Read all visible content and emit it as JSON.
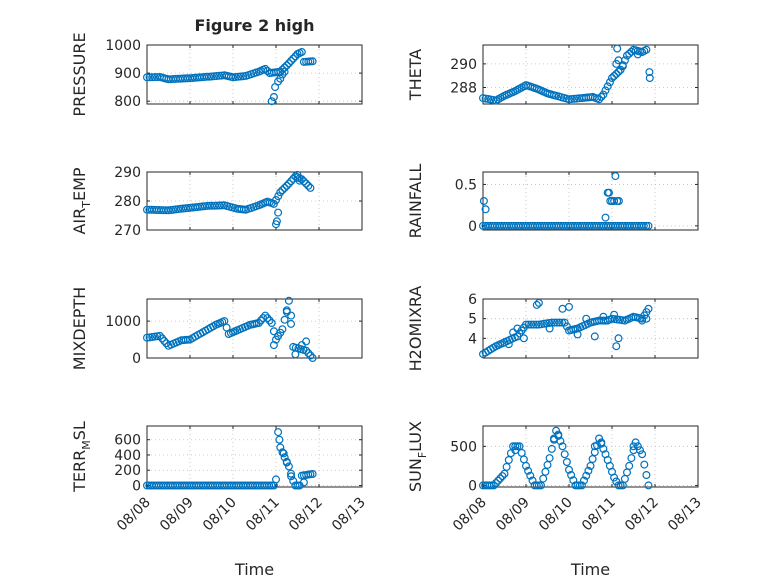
{
  "figure": {
    "marker_color": "#0072BD",
    "x_tick_labels": [
      "08/08",
      "08/09",
      "08/10",
      "08/11",
      "08/12",
      "08/13"
    ],
    "x_label": "Time"
  },
  "chart_data": [
    {
      "type": "scatter",
      "title": "Figure 2 high",
      "ylabel_parts": [
        "PRESSURE"
      ],
      "xlim": [
        0,
        5
      ],
      "ylim": [
        790,
        1000
      ],
      "yticks": [
        800,
        900,
        1000
      ],
      "ytick_labels": [
        "800",
        "900",
        "1000"
      ],
      "grid": true,
      "x_shown": false,
      "anchors": [
        [
          0,
          885
        ],
        [
          0.3,
          886
        ],
        [
          0.5,
          878
        ],
        [
          1.0,
          882
        ],
        [
          1.5,
          888
        ],
        [
          1.8,
          892
        ],
        [
          2.0,
          885
        ],
        [
          2.3,
          890
        ],
        [
          2.6,
          905
        ],
        [
          2.75,
          915
        ],
        [
          2.85,
          900
        ],
        [
          3.1,
          905
        ],
        [
          3.3,
          935
        ],
        [
          3.5,
          968
        ],
        [
          3.6,
          975
        ],
        [
          3.65,
          940
        ],
        [
          3.85,
          942
        ]
      ],
      "extra_points": [
        [
          2.9,
          800
        ],
        [
          2.95,
          815
        ],
        [
          2.98,
          850
        ],
        [
          3.05,
          870
        ],
        [
          3.1,
          880
        ],
        [
          3.15,
          895
        ],
        [
          3.2,
          905
        ]
      ]
    },
    {
      "type": "scatter",
      "title": "",
      "ylabel_parts": [
        "THETA"
      ],
      "xlim": [
        0,
        5
      ],
      "ylim": [
        286.6,
        291.6
      ],
      "yticks": [
        288,
        290
      ],
      "ytick_labels": [
        "288",
        "290"
      ],
      "grid": true,
      "x_shown": false,
      "anchors": [
        [
          0,
          287.1
        ],
        [
          0.3,
          286.9
        ],
        [
          0.5,
          287.3
        ],
        [
          0.75,
          287.7
        ],
        [
          1.0,
          288.2
        ],
        [
          1.25,
          287.9
        ],
        [
          1.5,
          287.5
        ],
        [
          1.7,
          287.3
        ],
        [
          2.0,
          287.0
        ],
        [
          2.3,
          287.1
        ],
        [
          2.55,
          287.2
        ],
        [
          2.7,
          287.0
        ],
        [
          2.8,
          287.4
        ],
        [
          3.0,
          288.8
        ],
        [
          3.2,
          289.5
        ],
        [
          3.35,
          290.7
        ],
        [
          3.5,
          291.2
        ],
        [
          3.7,
          291.0
        ],
        [
          3.8,
          291.2
        ],
        [
          3.88,
          288.8
        ]
      ],
      "extra_points": [
        [
          3.1,
          290.0
        ],
        [
          3.12,
          291.3
        ],
        [
          3.15,
          290.3
        ],
        [
          3.25,
          289.8
        ],
        [
          3.6,
          290.8
        ],
        [
          3.87,
          289.3
        ]
      ]
    },
    {
      "type": "scatter",
      "title": "",
      "ylabel_parts": [
        "AIR",
        "T",
        "EMP"
      ],
      "xlim": [
        0,
        5
      ],
      "ylim": [
        270,
        290
      ],
      "yticks": [
        270,
        280,
        290
      ],
      "ytick_labels": [
        "270",
        "280",
        "290"
      ],
      "grid": true,
      "x_shown": false,
      "anchors": [
        [
          0,
          277
        ],
        [
          0.5,
          276.8
        ],
        [
          0.9,
          277.5
        ],
        [
          1.4,
          278.3
        ],
        [
          1.8,
          278.5
        ],
        [
          2.1,
          277.3
        ],
        [
          2.3,
          277.0
        ],
        [
          2.6,
          278.5
        ],
        [
          2.8,
          279.8
        ],
        [
          2.95,
          279.0
        ],
        [
          3.1,
          283
        ],
        [
          3.3,
          286
        ],
        [
          3.45,
          288.5
        ],
        [
          3.6,
          287.5
        ],
        [
          3.8,
          284.5
        ]
      ],
      "extra_points": [
        [
          3.0,
          272
        ],
        [
          3.02,
          273
        ],
        [
          3.05,
          276
        ],
        [
          3.5,
          289
        ],
        [
          3.55,
          287
        ]
      ]
    },
    {
      "type": "scatter",
      "title": "",
      "ylabel_parts": [
        "RAINFALL"
      ],
      "xlim": [
        0,
        5
      ],
      "ylim": [
        -0.05,
        0.65
      ],
      "yticks": [
        0,
        0.5
      ],
      "ytick_labels": [
        "0",
        "0.5"
      ],
      "grid": true,
      "x_shown": false,
      "anchors": [
        [
          0,
          0
        ],
        [
          3.85,
          0
        ]
      ],
      "extra_points": [
        [
          0.02,
          0.3
        ],
        [
          0.06,
          0.2
        ],
        [
          2.85,
          0.1
        ],
        [
          2.9,
          0.4
        ],
        [
          2.93,
          0.4
        ],
        [
          2.96,
          0.3
        ],
        [
          3.0,
          0.3
        ],
        [
          3.05,
          0.3
        ],
        [
          3.08,
          0.6
        ],
        [
          3.12,
          0.3
        ],
        [
          3.16,
          0.3
        ]
      ]
    },
    {
      "type": "scatter",
      "title": "",
      "ylabel_parts": [
        "MIXDEPTH"
      ],
      "xlim": [
        0,
        5
      ],
      "ylim": [
        0,
        1600
      ],
      "yticks": [
        0,
        1000
      ],
      "ytick_labels": [
        "0",
        "1000"
      ],
      "grid": true,
      "x_shown": false,
      "anchors": [
        [
          0,
          550
        ],
        [
          0.3,
          600
        ],
        [
          0.5,
          330
        ],
        [
          0.8,
          480
        ],
        [
          1.0,
          500
        ],
        [
          1.3,
          700
        ],
        [
          1.6,
          900
        ],
        [
          1.8,
          1000
        ],
        [
          1.9,
          650
        ],
        [
          2.1,
          750
        ],
        [
          2.4,
          900
        ],
        [
          2.6,
          950
        ],
        [
          2.75,
          1150
        ],
        [
          2.9,
          950
        ],
        [
          3.0,
          500
        ],
        [
          3.15,
          780
        ],
        [
          3.3,
          1550
        ],
        [
          3.4,
          300
        ],
        [
          3.7,
          200
        ],
        [
          3.85,
          0
        ]
      ],
      "extra_points": [
        [
          2.95,
          350
        ],
        [
          3.05,
          600
        ],
        [
          3.25,
          1250
        ],
        [
          3.35,
          1150
        ],
        [
          3.45,
          100
        ],
        [
          3.6,
          350
        ],
        [
          3.7,
          450
        ]
      ]
    },
    {
      "type": "scatter",
      "title": "",
      "ylabel_parts": [
        "H2OMIXRA"
      ],
      "xlim": [
        0,
        5
      ],
      "ylim": [
        3,
        6
      ],
      "yticks": [
        4,
        5,
        6
      ],
      "ytick_labels": [
        "4",
        "5",
        "6"
      ],
      "grid": true,
      "x_shown": false,
      "anchors": [
        [
          0,
          3.2
        ],
        [
          0.3,
          3.6
        ],
        [
          0.5,
          3.8
        ],
        [
          0.8,
          4.1
        ],
        [
          1.0,
          4.7
        ],
        [
          1.3,
          4.7
        ],
        [
          1.6,
          4.8
        ],
        [
          1.9,
          4.8
        ],
        [
          2.0,
          4.4
        ],
        [
          2.2,
          4.5
        ],
        [
          2.5,
          4.8
        ],
        [
          2.7,
          4.9
        ],
        [
          2.9,
          4.9
        ],
        [
          3.0,
          5.0
        ],
        [
          3.3,
          4.9
        ],
        [
          3.5,
          5.1
        ],
        [
          3.7,
          5.0
        ],
        [
          3.85,
          5.5
        ]
      ],
      "extra_points": [
        [
          0.6,
          3.7
        ],
        [
          0.7,
          4.3
        ],
        [
          0.8,
          4.5
        ],
        [
          0.95,
          4.0
        ],
        [
          1.25,
          5.7
        ],
        [
          1.3,
          5.8
        ],
        [
          1.55,
          4.5
        ],
        [
          1.85,
          5.5
        ],
        [
          2.0,
          5.6
        ],
        [
          2.2,
          4.2
        ],
        [
          2.4,
          5.0
        ],
        [
          2.6,
          4.1
        ],
        [
          2.8,
          5.1
        ],
        [
          3.05,
          5.2
        ],
        [
          3.1,
          3.6
        ],
        [
          3.15,
          4.0
        ],
        [
          3.7,
          4.9
        ],
        [
          3.8,
          5.0
        ]
      ]
    },
    {
      "type": "scatter",
      "title": "",
      "ylabel_parts": [
        "TERR",
        "M",
        "SL"
      ],
      "xlim": [
        0,
        5
      ],
      "ylim": [
        -20,
        780
      ],
      "yticks": [
        0,
        200,
        400,
        600
      ],
      "ytick_labels": [
        "0",
        "200",
        "400",
        "600"
      ],
      "grid": true,
      "x_shown": true,
      "anchors": [
        [
          0,
          0
        ],
        [
          2.95,
          0
        ],
        [
          3.0,
          80
        ],
        [
          3.05,
          700
        ],
        [
          3.1,
          500
        ],
        [
          3.2,
          370
        ],
        [
          3.3,
          250
        ],
        [
          3.4,
          60
        ],
        [
          3.45,
          0
        ],
        [
          3.55,
          0
        ],
        [
          3.6,
          130
        ],
        [
          3.85,
          150
        ]
      ],
      "extra_points": [
        [
          3.08,
          600
        ],
        [
          3.18,
          420
        ],
        [
          3.25,
          300
        ],
        [
          3.35,
          120
        ],
        [
          3.65,
          40
        ]
      ]
    },
    {
      "type": "scatter",
      "title": "",
      "ylabel_parts": [
        "SUN",
        "F",
        "LUX"
      ],
      "xlim": [
        0,
        5
      ],
      "ylim": [
        -20,
        760
      ],
      "yticks": [
        0,
        500
      ],
      "ytick_labels": [
        "0",
        "500"
      ],
      "grid": true,
      "x_shown": true,
      "anchors": [
        [
          0,
          0
        ],
        [
          0.25,
          0
        ],
        [
          0.5,
          150
        ],
        [
          0.7,
          500
        ],
        [
          0.85,
          500
        ],
        [
          1.0,
          250
        ],
        [
          1.2,
          0
        ],
        [
          1.35,
          0
        ],
        [
          1.55,
          350
        ],
        [
          1.7,
          700
        ],
        [
          1.85,
          500
        ],
        [
          2.0,
          200
        ],
        [
          2.15,
          0
        ],
        [
          2.3,
          0
        ],
        [
          2.5,
          250
        ],
        [
          2.7,
          600
        ],
        [
          2.85,
          400
        ],
        [
          3.05,
          100
        ],
        [
          3.15,
          0
        ],
        [
          3.25,
          0
        ],
        [
          3.4,
          250
        ],
        [
          3.55,
          550
        ],
        [
          3.7,
          400
        ],
        [
          3.85,
          0
        ]
      ],
      "extra_points": [
        [
          0.75,
          450
        ],
        [
          1.65,
          600
        ],
        [
          1.75,
          650
        ],
        [
          2.6,
          500
        ],
        [
          2.75,
          550
        ],
        [
          3.5,
          500
        ]
      ]
    }
  ]
}
